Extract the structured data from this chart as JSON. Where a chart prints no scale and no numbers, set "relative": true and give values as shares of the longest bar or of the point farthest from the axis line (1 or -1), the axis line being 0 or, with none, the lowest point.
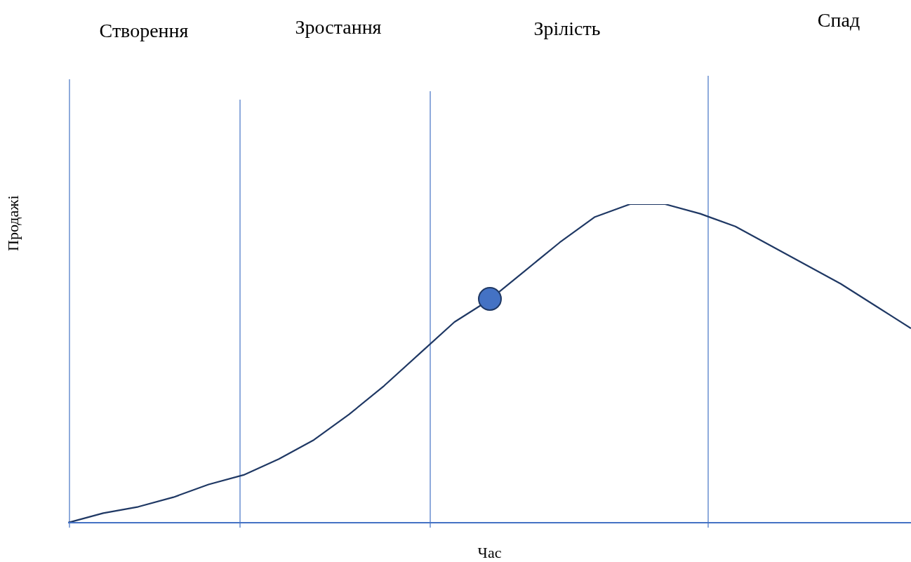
{
  "chart_data": {
    "type": "line",
    "relative": true,
    "xlabel": "Час",
    "ylabel": "Продажі",
    "categories": [
      null,
      null,
      null,
      null,
      null,
      null,
      null,
      null,
      null,
      null,
      null,
      null,
      null,
      null,
      null,
      null,
      null,
      null,
      null,
      null,
      null,
      null,
      null,
      null,
      null
    ],
    "series": [
      {
        "type": "line",
        "color": "#1f3864",
        "values": [
          0,
          0.03,
          0.05,
          0.08,
          0.12,
          0.15,
          0.2,
          0.26,
          0.34,
          0.43,
          0.53,
          0.63,
          0.7,
          0.79,
          0.88,
          0.96,
          1,
          1,
          0.97,
          0.93,
          0.87,
          0.81,
          0.75,
          0.68,
          0.61
        ]
      }
    ],
    "annotations": [
      "Створення",
      "Зростання",
      "Зрілість",
      "Спад"
    ],
    "grid": false,
    "legend": false,
    "marker": "none",
    "line_style": "solid"
  }
}
